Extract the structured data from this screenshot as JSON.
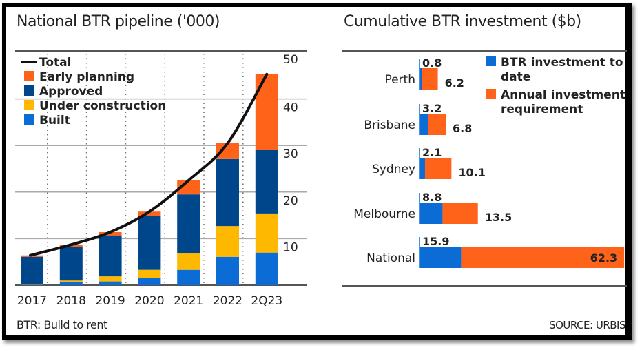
{
  "left_chart": {
    "title": "National BTR pipeline ('000)",
    "footnote": "BTR: Build to rent"
  },
  "right_chart": {
    "title": "Cumulative BTR investment ($b)",
    "source": "SOURCE: URBIS"
  },
  "colors": {
    "early_planning": "#FF6319",
    "approved": "#00468B",
    "under_construction": "#FFB800",
    "built": "#0A6CD4",
    "total": "#111111",
    "investment_to_date": "#0A6CD4",
    "annual_requirement": "#FF6319"
  },
  "chart_data": [
    {
      "type": "bar",
      "stacked": true,
      "title": "National BTR pipeline ('000)",
      "xlabel": "",
      "ylabel": "",
      "categories": [
        "2017",
        "2018",
        "2019",
        "2020",
        "2021",
        "2022",
        "2Q23"
      ],
      "ylim": [
        0,
        50
      ],
      "yticks": [
        10,
        20,
        30,
        40,
        50
      ],
      "grid": true,
      "legend_position": "top-left",
      "series": [
        {
          "name": "Built",
          "key": "built",
          "values": [
            0.1,
            0.7,
            0.8,
            1.6,
            3.3,
            6.1,
            7.0
          ]
        },
        {
          "name": "Under construction",
          "key": "under_construction",
          "values": [
            0.2,
            0.3,
            1.1,
            1.7,
            3.5,
            6.6,
            8.4
          ]
        },
        {
          "name": "Approved",
          "key": "approved",
          "values": [
            5.8,
            7.2,
            8.8,
            11.5,
            12.7,
            14.4,
            13.6
          ]
        },
        {
          "name": "Early planning",
          "key": "early_planning",
          "values": [
            0.3,
            0.5,
            0.7,
            1.0,
            3.0,
            3.4,
            16.3
          ]
        }
      ],
      "line": {
        "name": "Total",
        "key": "total",
        "values": [
          6.4,
          8.7,
          11.4,
          15.8,
          22.5,
          30.5,
          45.3
        ]
      },
      "legend": [
        "Total",
        "Early planning",
        "Approved",
        "Under construction",
        "Built"
      ]
    },
    {
      "type": "bar",
      "orientation": "horizontal",
      "stacked": true,
      "title": "Cumulative BTR investment ($b)",
      "categories": [
        "Perth",
        "Brisbane",
        "Sydney",
        "Melbourne",
        "National"
      ],
      "series": [
        {
          "name": "BTR investment to date",
          "key": "investment_to_date",
          "values": [
            0.8,
            3.2,
            2.1,
            8.8,
            15.9
          ]
        },
        {
          "name": "Annual investment requirement",
          "key": "annual_requirement",
          "values": [
            6.2,
            6.8,
            10.1,
            13.5,
            62.3
          ]
        }
      ],
      "legend": [
        "BTR investment to date",
        "Annual investment requirement"
      ],
      "legend_position": "top-right"
    }
  ]
}
